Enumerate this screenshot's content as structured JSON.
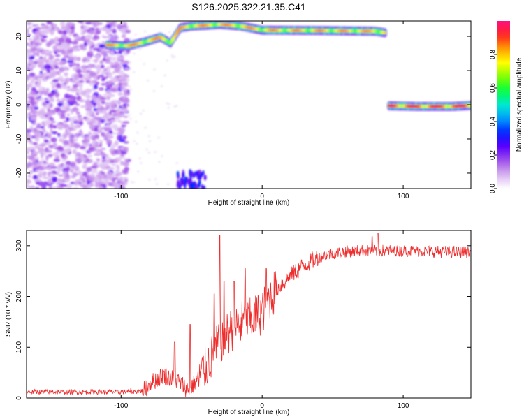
{
  "title": "S126.2025.322.21.35.C41",
  "chart_data": [
    {
      "type": "heatmap",
      "name": "spectrogram",
      "xlabel": "Height of straight line (km)",
      "ylabel": "Frequency (Hz)",
      "xlim": [
        -167,
        148
      ],
      "ylim": [
        -24.5,
        24.5
      ],
      "xticks": [
        -100,
        0,
        100
      ],
      "xtick_labels": [
        "-100",
        "0",
        "100"
      ],
      "yticks": [
        -20,
        -10,
        0,
        10,
        20
      ],
      "ytick_labels": [
        "-20",
        "-10",
        "0",
        "10",
        "20"
      ],
      "colorbar": {
        "label": "Normalized spectral amplitude",
        "range": [
          0,
          1
        ],
        "ticks": [
          0.0,
          0.2,
          0.4,
          0.6,
          0.8
        ],
        "tick_labels": [
          "0.0",
          "0.2",
          "0.4",
          "0.6",
          "0.8"
        ]
      },
      "features": [
        {
          "name": "upper-ridge",
          "points": [
            [
              -110,
              17.5
            ],
            [
              -95,
              17.2
            ],
            [
              -82,
              18.5
            ],
            [
              -72,
              19.8
            ],
            [
              -65,
              18.0
            ],
            [
              -58,
              22.5
            ],
            [
              -50,
              23.0
            ],
            [
              -40,
              23.2
            ],
            [
              -30,
              23.5
            ],
            [
              -15,
              23.0
            ],
            [
              0,
              21.8
            ],
            [
              40,
              21.7
            ],
            [
              80,
              21.5
            ],
            [
              88,
              21.0
            ]
          ],
          "amplitude": 0.85
        },
        {
          "name": "zero-line",
          "points": [
            [
              90,
              -0.3
            ],
            [
              110,
              -0.5
            ],
            [
              135,
              -0.5
            ],
            [
              148,
              -0.2
            ]
          ],
          "amplitude": 0.95
        },
        {
          "name": "noise-region",
          "x_range": [
            -167,
            -95
          ],
          "y_range": [
            -24.5,
            24.5
          ],
          "amplitude": 0.15
        },
        {
          "name": "low-streak",
          "points": [
            [
              -60,
              -24
            ],
            [
              -50,
              -22
            ],
            [
              -40,
              -24
            ]
          ],
          "amplitude": 0.3
        }
      ]
    },
    {
      "type": "line",
      "name": "snr",
      "xlabel": "Height of straight line (km)",
      "ylabel": "SNR (10 * v/v)",
      "xlim": [
        -167,
        148
      ],
      "ylim": [
        0,
        330
      ],
      "xticks": [
        -100,
        0,
        100
      ],
      "xtick_labels": [
        "-100",
        "0",
        "100"
      ],
      "yticks": [
        0,
        100,
        200,
        300
      ],
      "ytick_labels": [
        "0",
        "100",
        "200",
        "300"
      ],
      "color": "#ee2e2e",
      "trend": [
        [
          -167,
          12
        ],
        [
          -100,
          12
        ],
        [
          -85,
          14
        ],
        [
          -80,
          28
        ],
        [
          -70,
          45
        ],
        [
          -60,
          35
        ],
        [
          -52,
          15
        ],
        [
          -45,
          40
        ],
        [
          -38,
          70
        ],
        [
          -30,
          110
        ],
        [
          -20,
          140
        ],
        [
          -10,
          150
        ],
        [
          0,
          170
        ],
        [
          5,
          195
        ],
        [
          10,
          215
        ],
        [
          20,
          240
        ],
        [
          30,
          262
        ],
        [
          40,
          278
        ],
        [
          55,
          288
        ],
        [
          70,
          290
        ],
        [
          100,
          290
        ],
        [
          148,
          287
        ]
      ],
      "spikes": [
        [
          -62,
          110
        ],
        [
          -51,
          145
        ],
        [
          -34,
          205
        ],
        [
          -30,
          320
        ],
        [
          -27,
          230
        ],
        [
          -20,
          230
        ],
        [
          -12,
          255
        ],
        [
          3,
          255
        ],
        [
          78,
          318
        ],
        [
          82,
          325
        ]
      ]
    }
  ],
  "colors": {
    "line": "#ee2e2e",
    "colormap": [
      "#ffffff",
      "#d8b4f0",
      "#a050e8",
      "#5a00ff",
      "#0020ff",
      "#00a0ff",
      "#00e8d0",
      "#00ff40",
      "#80ff00",
      "#ffff00",
      "#ffa000",
      "#ff2020",
      "#ff1080"
    ]
  }
}
